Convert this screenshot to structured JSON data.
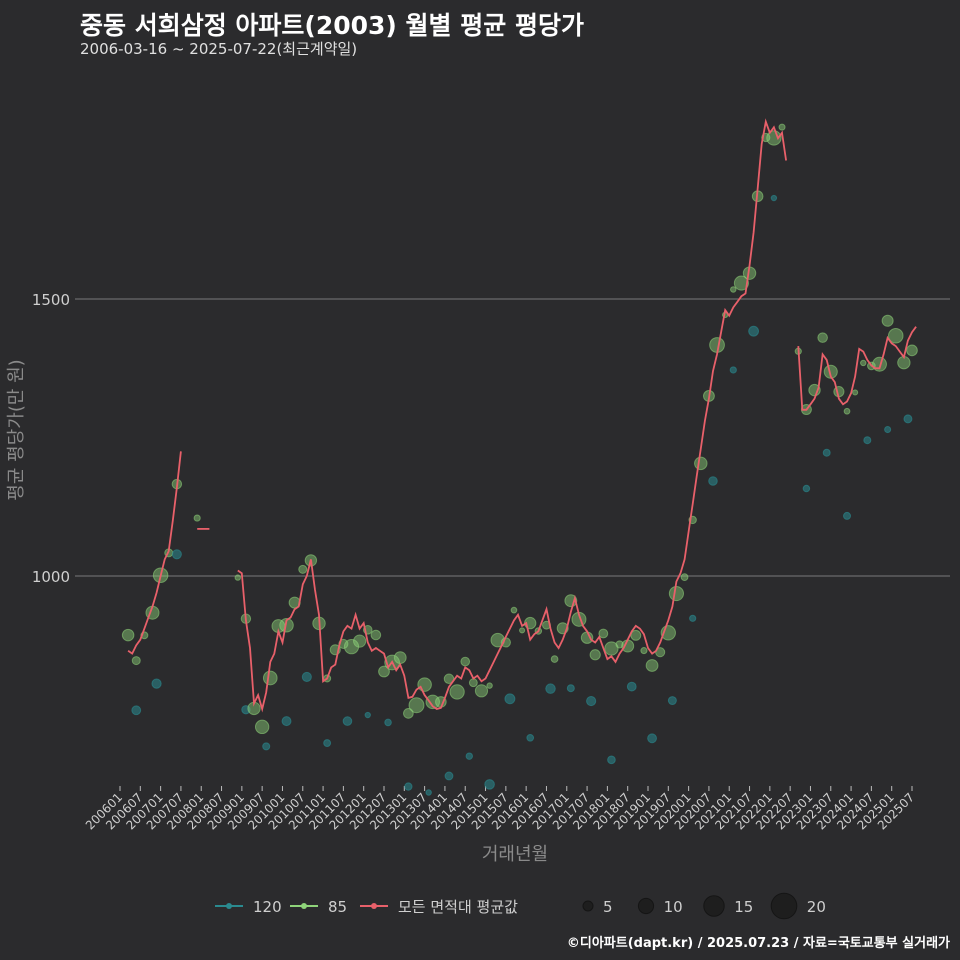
{
  "title": "중동 서희삼정 아파트(2003) 월별 평균 평당가",
  "subtitle": "2006-03-16 ~ 2025-07-22(최근계약일)",
  "caption": "©디아파트(dapt.kr) / 2025.07.23 / 자료=국토교통부 실거래가",
  "colors": {
    "s120": "#2a8a8f",
    "s85": "#8fd47a",
    "avg": "#e8606a",
    "grid": "#7a7a7a",
    "text": "#cfcfcf"
  },
  "chart_data": {
    "type": "line+scatter",
    "xlabel": "거래년월",
    "ylabel": "평균 평당가(만 원)",
    "ylim": [
      600,
      1950
    ],
    "y_ticks": [
      1000,
      1500
    ],
    "x_ticks": [
      "200601",
      "200607",
      "200701",
      "200707",
      "200801",
      "200807",
      "200901",
      "200907",
      "201001",
      "201007",
      "201101",
      "201107",
      "201201",
      "201207",
      "201301",
      "201307",
      "201401",
      "201407",
      "201501",
      "201507",
      "201601",
      "201607",
      "201701",
      "201707",
      "201801",
      "201807",
      "201901",
      "201907",
      "202001",
      "202007",
      "202101",
      "202107",
      "202201",
      "202207",
      "202301",
      "202307",
      "202401",
      "202407",
      "202501",
      "202507"
    ],
    "legend": {
      "series": [
        {
          "key": "s120",
          "label": "120"
        },
        {
          "key": "s85",
          "label": "85"
        },
        {
          "key": "avg",
          "label": "모든 면적대 평균값"
        }
      ],
      "sizes": [
        5,
        10,
        15,
        20
      ]
    },
    "avg_line": [
      [
        [
          2006.2,
          865
        ],
        [
          2006.3,
          860
        ],
        [
          2006.4,
          875
        ],
        [
          2006.5,
          885
        ],
        [
          2006.6,
          905
        ],
        [
          2006.7,
          925
        ],
        [
          2006.8,
          945
        ],
        [
          2006.9,
          970
        ],
        [
          2007.0,
          1000
        ],
        [
          2007.1,
          1030
        ],
        [
          2007.2,
          1045
        ],
        [
          2007.3,
          1100
        ],
        [
          2007.4,
          1160
        ],
        [
          2007.5,
          1225
        ]
      ],
      [
        [
          2007.9,
          1085
        ],
        [
          2008.2,
          1085
        ]
      ],
      [
        [
          2008.9,
          1010
        ],
        [
          2009.0,
          1005
        ],
        [
          2009.1,
          920
        ],
        [
          2009.2,
          870
        ],
        [
          2009.3,
          770
        ],
        [
          2009.4,
          785
        ],
        [
          2009.5,
          760
        ],
        [
          2009.6,
          790
        ],
        [
          2009.7,
          845
        ],
        [
          2009.8,
          860
        ],
        [
          2009.9,
          900
        ],
        [
          2010.0,
          880
        ],
        [
          2010.1,
          920
        ],
        [
          2010.2,
          925
        ],
        [
          2010.3,
          940
        ],
        [
          2010.4,
          945
        ],
        [
          2010.5,
          985
        ],
        [
          2010.6,
          1000
        ],
        [
          2010.7,
          1030
        ],
        [
          2010.8,
          975
        ],
        [
          2010.9,
          930
        ],
        [
          2011.0,
          810
        ],
        [
          2011.1,
          815
        ],
        [
          2011.2,
          835
        ],
        [
          2011.3,
          840
        ],
        [
          2011.4,
          875
        ],
        [
          2011.5,
          900
        ],
        [
          2011.6,
          910
        ],
        [
          2011.7,
          905
        ],
        [
          2011.8,
          930
        ],
        [
          2011.9,
          905
        ],
        [
          2012.0,
          915
        ],
        [
          2012.1,
          880
        ],
        [
          2012.2,
          865
        ],
        [
          2012.3,
          870
        ],
        [
          2012.4,
          865
        ],
        [
          2012.5,
          860
        ],
        [
          2012.6,
          835
        ],
        [
          2012.7,
          845
        ],
        [
          2012.8,
          830
        ],
        [
          2012.9,
          840
        ],
        [
          2013.0,
          820
        ],
        [
          2013.1,
          780
        ],
        [
          2013.2,
          782
        ],
        [
          2013.3,
          795
        ],
        [
          2013.4,
          800
        ],
        [
          2013.5,
          785
        ],
        [
          2013.6,
          775
        ],
        [
          2013.7,
          765
        ],
        [
          2013.8,
          760
        ],
        [
          2013.9,
          762
        ],
        [
          2014.0,
          780
        ],
        [
          2014.1,
          800
        ],
        [
          2014.2,
          810
        ],
        [
          2014.3,
          820
        ],
        [
          2014.4,
          815
        ],
        [
          2014.5,
          835
        ],
        [
          2014.6,
          830
        ],
        [
          2014.7,
          815
        ],
        [
          2014.8,
          820
        ],
        [
          2014.9,
          810
        ],
        [
          2015.0,
          815
        ],
        [
          2015.1,
          830
        ],
        [
          2015.2,
          845
        ],
        [
          2015.3,
          860
        ],
        [
          2015.4,
          875
        ],
        [
          2015.5,
          890
        ],
        [
          2015.6,
          905
        ],
        [
          2015.7,
          920
        ],
        [
          2015.8,
          930
        ],
        [
          2015.9,
          910
        ],
        [
          2016.0,
          915
        ],
        [
          2016.1,
          885
        ],
        [
          2016.2,
          895
        ],
        [
          2016.3,
          900
        ],
        [
          2016.4,
          920
        ],
        [
          2016.5,
          940
        ],
        [
          2016.6,
          905
        ],
        [
          2016.7,
          880
        ],
        [
          2016.8,
          870
        ],
        [
          2016.9,
          885
        ],
        [
          2017.0,
          905
        ],
        [
          2017.1,
          935
        ],
        [
          2017.2,
          960
        ],
        [
          2017.3,
          930
        ],
        [
          2017.4,
          910
        ],
        [
          2017.5,
          900
        ],
        [
          2017.6,
          885
        ],
        [
          2017.7,
          880
        ],
        [
          2017.8,
          890
        ],
        [
          2017.9,
          870
        ],
        [
          2018.0,
          850
        ],
        [
          2018.1,
          855
        ],
        [
          2018.2,
          845
        ],
        [
          2018.3,
          860
        ],
        [
          2018.4,
          870
        ],
        [
          2018.5,
          885
        ],
        [
          2018.6,
          900
        ],
        [
          2018.7,
          910
        ],
        [
          2018.8,
          905
        ],
        [
          2018.9,
          895
        ],
        [
          2019.0,
          870
        ],
        [
          2019.1,
          860
        ],
        [
          2019.2,
          865
        ],
        [
          2019.3,
          880
        ],
        [
          2019.4,
          900
        ],
        [
          2019.5,
          920
        ],
        [
          2019.6,
          945
        ],
        [
          2019.7,
          990
        ],
        [
          2019.8,
          1005
        ],
        [
          2019.9,
          1030
        ],
        [
          2020.0,
          1080
        ],
        [
          2020.1,
          1130
        ],
        [
          2020.2,
          1180
        ],
        [
          2020.3,
          1230
        ],
        [
          2020.4,
          1280
        ],
        [
          2020.5,
          1320
        ],
        [
          2020.6,
          1370
        ],
        [
          2020.7,
          1400
        ],
        [
          2020.8,
          1440
        ],
        [
          2020.9,
          1480
        ],
        [
          2021.0,
          1470
        ],
        [
          2021.1,
          1485
        ],
        [
          2021.2,
          1495
        ],
        [
          2021.3,
          1505
        ],
        [
          2021.4,
          1510
        ],
        [
          2021.5,
          1560
        ],
        [
          2021.6,
          1620
        ],
        [
          2021.7,
          1700
        ],
        [
          2021.8,
          1780
        ],
        [
          2021.9,
          1820
        ],
        [
          2022.0,
          1800
        ],
        [
          2022.1,
          1810
        ],
        [
          2022.2,
          1790
        ],
        [
          2022.3,
          1800
        ],
        [
          2022.4,
          1750
        ]
      ],
      [
        [
          2022.7,
          1415
        ],
        [
          2022.8,
          1300
        ],
        [
          2022.9,
          1300
        ],
        [
          2023.0,
          1310
        ],
        [
          2023.1,
          1320
        ],
        [
          2023.2,
          1340
        ],
        [
          2023.3,
          1400
        ],
        [
          2023.4,
          1390
        ],
        [
          2023.5,
          1360
        ],
        [
          2023.6,
          1350
        ],
        [
          2023.7,
          1320
        ],
        [
          2023.8,
          1310
        ],
        [
          2023.9,
          1315
        ],
        [
          2024.0,
          1330
        ],
        [
          2024.1,
          1360
        ],
        [
          2024.2,
          1410
        ],
        [
          2024.3,
          1405
        ],
        [
          2024.4,
          1390
        ],
        [
          2024.5,
          1380
        ],
        [
          2024.6,
          1375
        ],
        [
          2024.7,
          1375
        ],
        [
          2024.8,
          1400
        ],
        [
          2024.9,
          1430
        ],
        [
          2025.0,
          1420
        ],
        [
          2025.1,
          1415
        ],
        [
          2025.2,
          1405
        ],
        [
          2025.3,
          1395
        ],
        [
          2025.4,
          1425
        ],
        [
          2025.5,
          1440
        ],
        [
          2025.6,
          1450
        ]
      ]
    ]
  }
}
